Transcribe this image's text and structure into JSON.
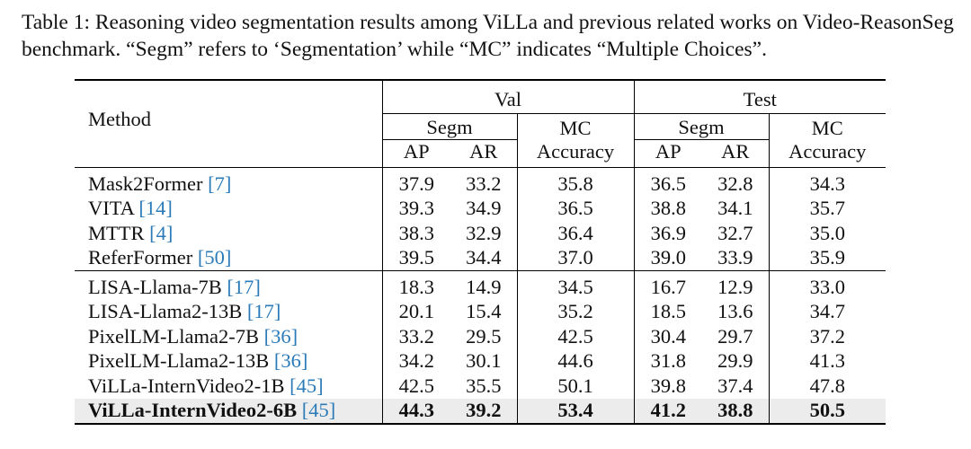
{
  "caption": "Table 1: Reasoning video segmentation results among ViLLa and previous related works on Video-ReasonSeg benchmark. “Segm” refers to ‘Segmentation’ while “MC” indicates “Multiple Choices”.",
  "header": {
    "method": "Method",
    "val": "Val",
    "test": "Test",
    "segm": "Segm",
    "mc": "MC",
    "ap": "AP",
    "ar": "AR",
    "accuracy": "Accuracy"
  },
  "rows": [
    {
      "name": "Mask2Former",
      "cite": "[7]",
      "val_ap": "37.9",
      "val_ar": "33.2",
      "val_mc": "35.8",
      "test_ap": "36.5",
      "test_ar": "32.8",
      "test_mc": "34.3"
    },
    {
      "name": "VITA",
      "cite": "[14]",
      "val_ap": "39.3",
      "val_ar": "34.9",
      "val_mc": "36.5",
      "test_ap": "38.8",
      "test_ar": "34.1",
      "test_mc": "35.7"
    },
    {
      "name": "MTTR",
      "cite": "[4]",
      "val_ap": "38.3",
      "val_ar": "32.9",
      "val_mc": "36.4",
      "test_ap": "36.9",
      "test_ar": "32.7",
      "test_mc": "35.0"
    },
    {
      "name": "ReferFormer",
      "cite": "[50]",
      "val_ap": "39.5",
      "val_ar": "34.4",
      "val_mc": "37.0",
      "test_ap": "39.0",
      "test_ar": "33.9",
      "test_mc": "35.9"
    },
    {
      "name": "LISA-Llama-7B",
      "cite": "[17]",
      "val_ap": "18.3",
      "val_ar": "14.9",
      "val_mc": "34.5",
      "test_ap": "16.7",
      "test_ar": "12.9",
      "test_mc": "33.0"
    },
    {
      "name": "LISA-Llama2-13B",
      "cite": "[17]",
      "val_ap": "20.1",
      "val_ar": "15.4",
      "val_mc": "35.2",
      "test_ap": "18.5",
      "test_ar": "13.6",
      "test_mc": "34.7"
    },
    {
      "name": "PixelLM-Llama2-7B",
      "cite": "[36]",
      "val_ap": "33.2",
      "val_ar": "29.5",
      "val_mc": "42.5",
      "test_ap": "30.4",
      "test_ar": "29.7",
      "test_mc": "37.2"
    },
    {
      "name": "PixelLM-Llama2-13B",
      "cite": "[36]",
      "val_ap": "34.2",
      "val_ar": "30.1",
      "val_mc": "44.6",
      "test_ap": "31.8",
      "test_ar": "29.9",
      "test_mc": "41.3"
    },
    {
      "name": "ViLLa-InternVideo2-1B",
      "cite": "[45]",
      "val_ap": "42.5",
      "val_ar": "35.5",
      "val_mc": "50.1",
      "test_ap": "39.8",
      "test_ar": "37.4",
      "test_mc": "47.8"
    },
    {
      "name": "ViLLa-InternVideo2-6B",
      "cite": "[45]",
      "val_ap": "44.3",
      "val_ar": "39.2",
      "val_mc": "53.4",
      "test_ap": "41.2",
      "test_ar": "38.8",
      "test_mc": "50.5"
    }
  ]
}
